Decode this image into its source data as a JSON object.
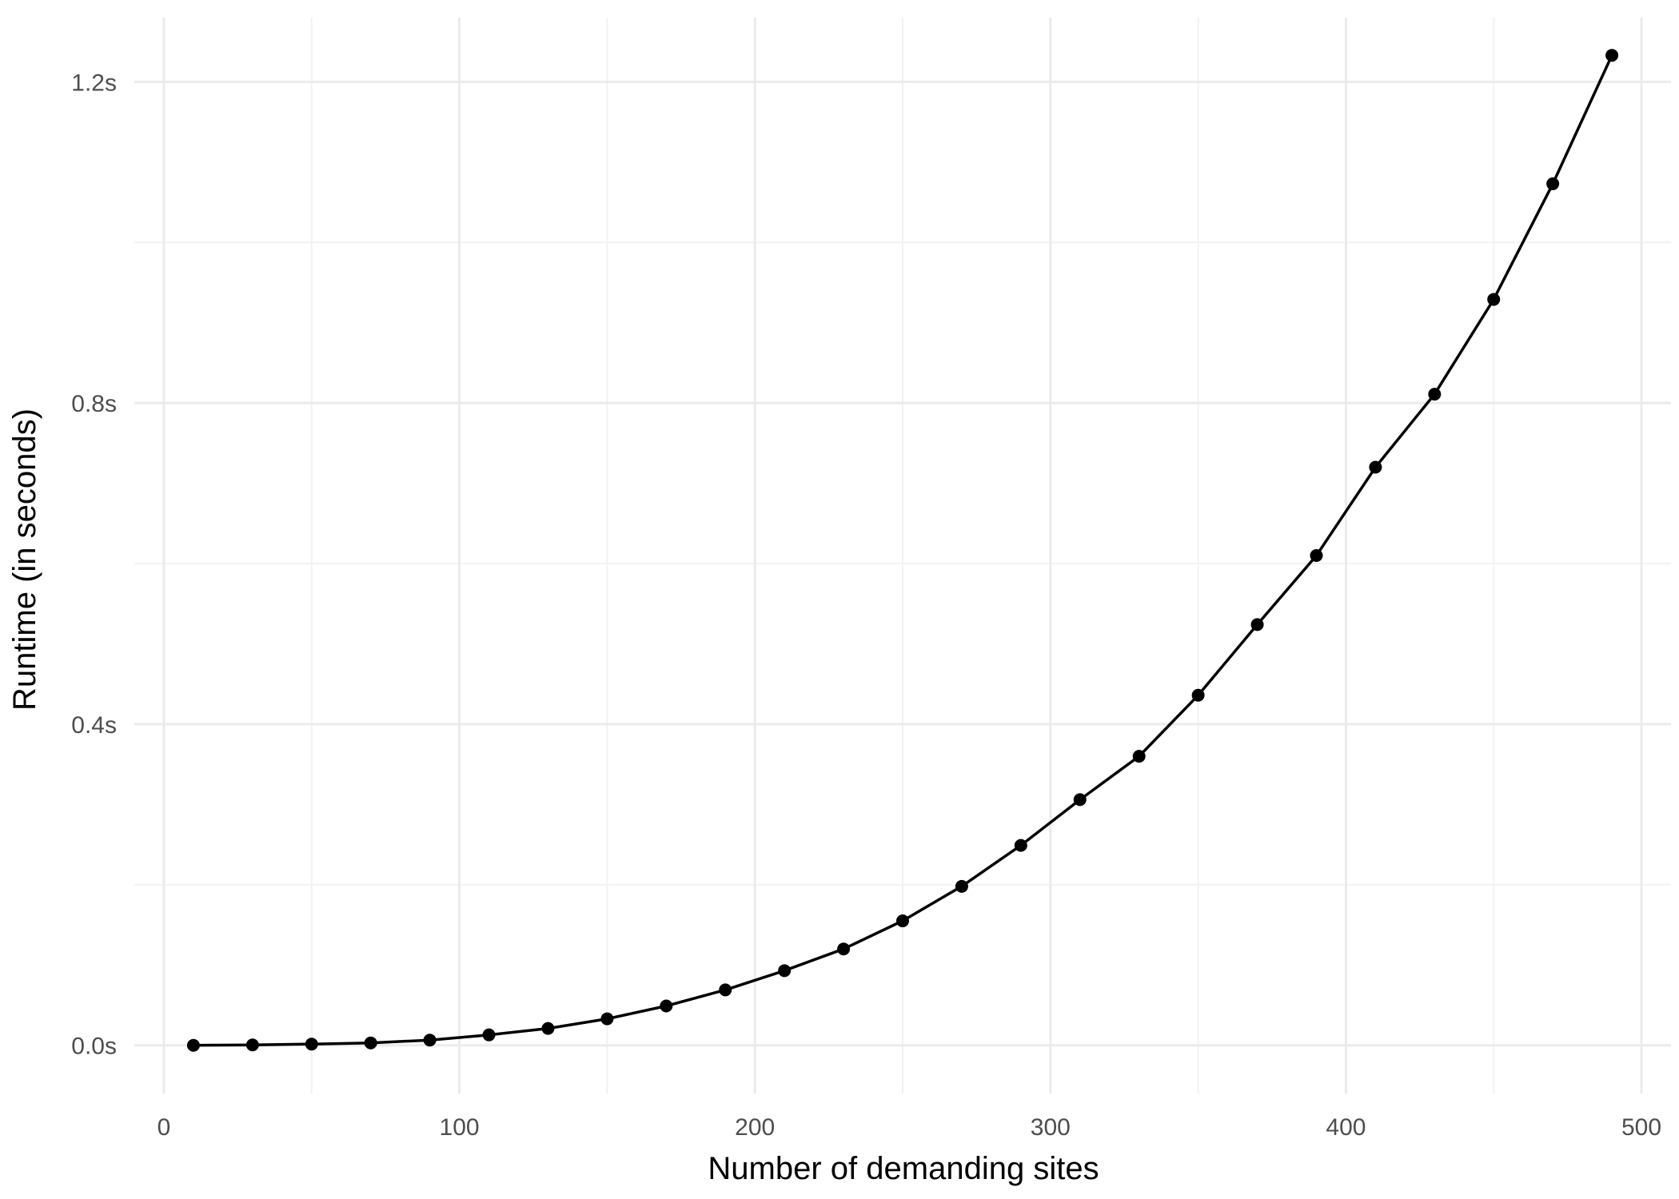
{
  "chart_data": {
    "type": "line",
    "title": "",
    "xlabel": "Number of demanding sites",
    "ylabel": "Runtime (in seconds)",
    "xlim": [
      -10,
      510
    ],
    "ylim": [
      -0.06,
      1.28
    ],
    "x_ticks": [
      0,
      100,
      200,
      300,
      400,
      500
    ],
    "x_tick_labels": [
      "0",
      "100",
      "200",
      "300",
      "400",
      "500"
    ],
    "x_minor_ticks": [
      50,
      150,
      250,
      350,
      450
    ],
    "y_ticks": [
      0.0,
      0.4,
      0.8,
      1.2
    ],
    "y_tick_labels": [
      "0.0s",
      "0.4s",
      "0.8s",
      "1.2s"
    ],
    "y_minor_ticks": [
      0.2,
      0.6,
      1.0
    ],
    "grid": true,
    "legend": "none",
    "colors": {
      "line": "#000000",
      "point": "#000000",
      "grid": "#ebebeb",
      "background": "#ffffff"
    },
    "series": [
      {
        "x": [
          10,
          30,
          50,
          70,
          90,
          110,
          130,
          150,
          170,
          190,
          210,
          230,
          250,
          270,
          290,
          310,
          330,
          350,
          370,
          390,
          410,
          430,
          450,
          470,
          490
        ],
        "y": [
          0.0,
          0.0005,
          0.0015,
          0.003,
          0.0065,
          0.013,
          0.021,
          0.033,
          0.049,
          0.069,
          0.093,
          0.12,
          0.155,
          0.198,
          0.249,
          0.306,
          0.36,
          0.436,
          0.524,
          0.61,
          0.72,
          0.811,
          0.929,
          1.073,
          1.233
        ]
      }
    ]
  }
}
